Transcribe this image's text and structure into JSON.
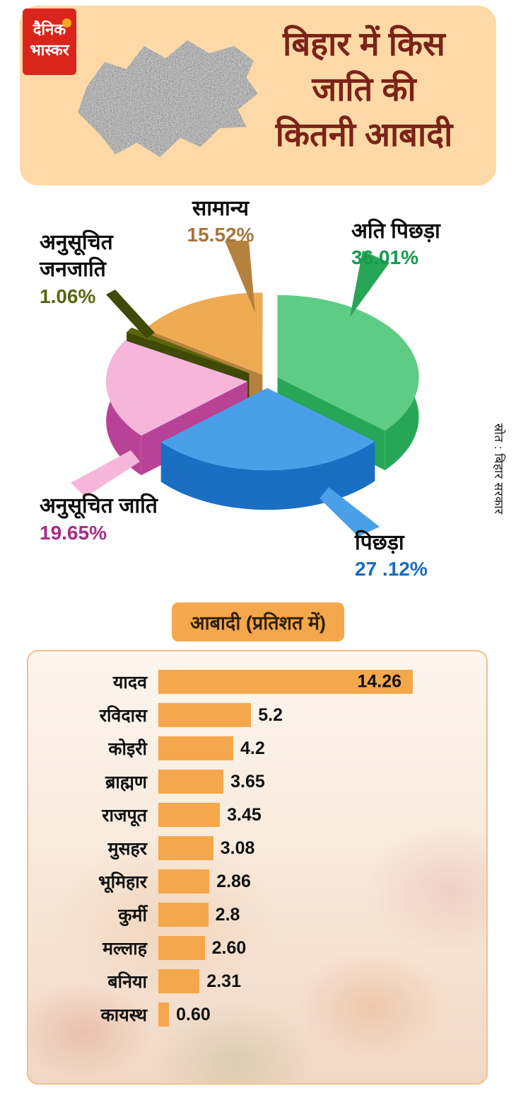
{
  "header": {
    "logo": {
      "line1": "दैनिक",
      "line2": "भास्कर"
    },
    "title_lines": [
      "बिहार में किस",
      "जाति की",
      "कितनी आबादी"
    ]
  },
  "source_note": "स्रोत : बिहार सरकार",
  "section_label": "आबादी (प्रतिशत में)",
  "colors": {
    "brand_red": "#d9251c",
    "brand_dot": "#f7a823",
    "header_peach": "#fcd9a6",
    "title_maroon": "#7a2318",
    "pill_orange": "#f5a74c"
  },
  "chart_data": [
    {
      "type": "pie",
      "title": "बिहार में किस जाति की कितनी आबादी",
      "unit": "percent",
      "slices": [
        {
          "label": "अति पिछड़ा",
          "value": 36.01,
          "display": "36.01%",
          "top": "#5ecc84",
          "side": "#27a657",
          "label_color": "#169a4e"
        },
        {
          "label": "पिछड़ा",
          "value": 27.12,
          "display": "27 .12%",
          "top": "#4aa0e8",
          "side": "#1a6fc2",
          "label_color": "#1b6bc0"
        },
        {
          "label": "अनुसूचित जाति",
          "value": 19.65,
          "display": "19.65%",
          "top": "#f6b6da",
          "side": "#b84396",
          "label_color": "#a62d84"
        },
        {
          "label": "अनुसूचित जनजाति",
          "value": 1.06,
          "display": "1.06%",
          "top": "#5a650a",
          "side": "#3f4a06",
          "label_color": "#5b6612"
        },
        {
          "label": "सामान्य",
          "value": 15.52,
          "display": "15.52%",
          "top": "#efab52",
          "side": "#b5823e",
          "label_color": "#a5743c"
        }
      ]
    },
    {
      "type": "bar",
      "title": "आबादी (प्रतिशत में)",
      "categories": [
        "यादव",
        "रविदास",
        "कोइरी",
        "ब्राह्मण",
        "राजपूत",
        "मुसहर",
        "भूमिहार",
        "कुर्मी",
        "मल्लाह",
        "बनिया",
        "कायस्थ"
      ],
      "values": [
        14.26,
        5.2,
        4.2,
        3.65,
        3.45,
        3.08,
        2.86,
        2.8,
        2.6,
        2.31,
        0.6
      ],
      "value_labels": [
        "14.26",
        "5.2",
        "4.2",
        "3.65",
        "3.45",
        "3.08",
        "2.86",
        "2.8",
        "2.60",
        "2.31",
        "0.60"
      ],
      "bar_color": "#f5a74c",
      "xlim": [
        0,
        15
      ]
    }
  ]
}
